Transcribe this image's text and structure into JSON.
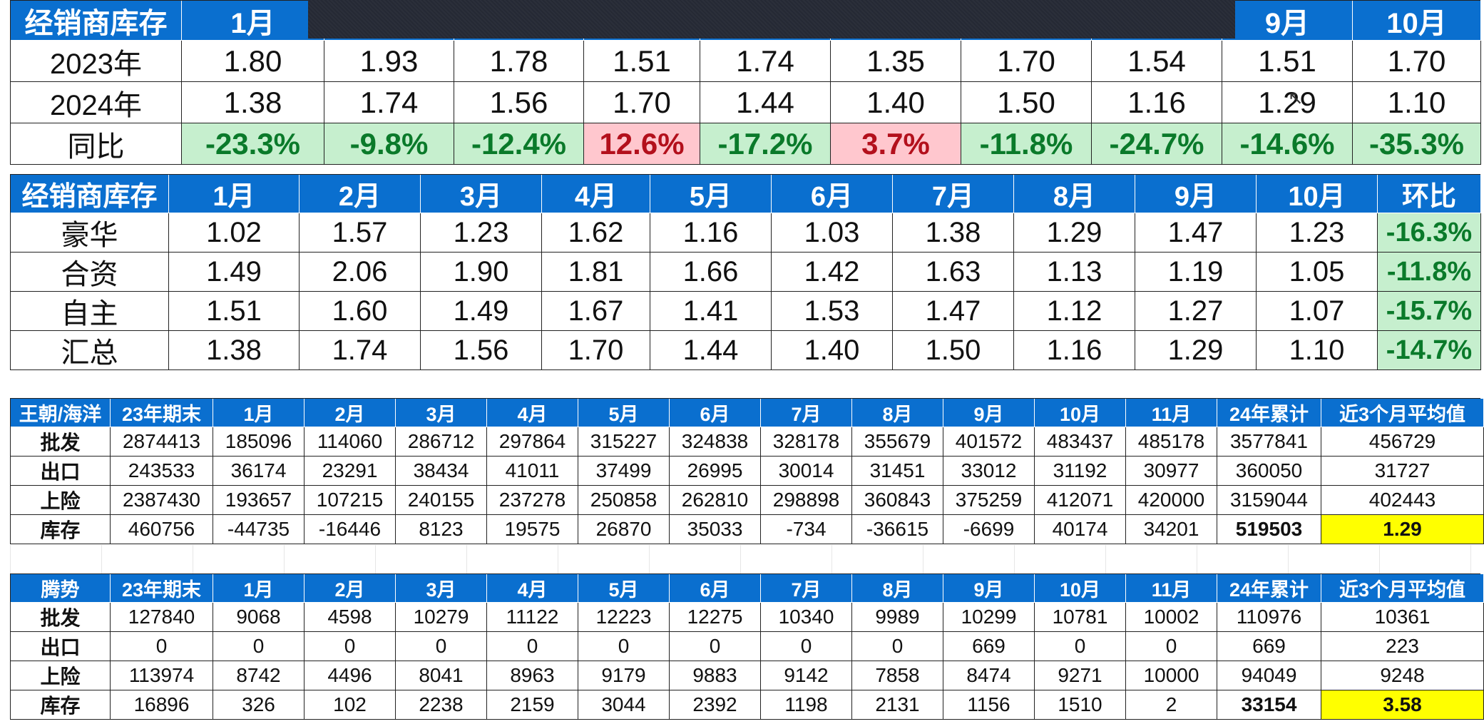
{
  "table1": {
    "header": [
      "经销商库存",
      "1月",
      "",
      "",
      "",
      "",
      "",
      "",
      "",
      "9月",
      "10月"
    ],
    "rows": [
      {
        "label": "2023年",
        "values": [
          "1.80",
          "1.93",
          "1.78",
          "1.51",
          "1.74",
          "1.35",
          "1.70",
          "1.54",
          "1.51",
          "1.70"
        ]
      },
      {
        "label": "2024年",
        "values": [
          "1.38",
          "1.74",
          "1.56",
          "1.70",
          "1.44",
          "1.40",
          "1.50",
          "1.16",
          "1.29",
          "1.10"
        ]
      },
      {
        "label": "同比",
        "values": [
          "-23.3%",
          "-9.8%",
          "-12.4%",
          "12.6%",
          "-17.2%",
          "3.7%",
          "-11.8%",
          "-24.7%",
          "-14.6%",
          "-35.3%"
        ]
      }
    ]
  },
  "table2": {
    "header": [
      "经销商库存",
      "1月",
      "2月",
      "3月",
      "4月",
      "5月",
      "6月",
      "7月",
      "8月",
      "9月",
      "10月",
      "环比"
    ],
    "rows": [
      {
        "label": "豪华",
        "values": [
          "1.02",
          "1.57",
          "1.23",
          "1.62",
          "1.16",
          "1.03",
          "1.38",
          "1.29",
          "1.47",
          "1.23"
        ],
        "change": "-16.3%"
      },
      {
        "label": "合资",
        "values": [
          "1.49",
          "2.06",
          "1.90",
          "1.81",
          "1.66",
          "1.42",
          "1.63",
          "1.13",
          "1.19",
          "1.05"
        ],
        "change": "-11.8%"
      },
      {
        "label": "自主",
        "values": [
          "1.51",
          "1.60",
          "1.49",
          "1.67",
          "1.41",
          "1.53",
          "1.47",
          "1.12",
          "1.27",
          "1.07"
        ],
        "change": "-15.7%"
      },
      {
        "label": "汇总",
        "values": [
          "1.38",
          "1.74",
          "1.56",
          "1.70",
          "1.44",
          "1.40",
          "1.50",
          "1.16",
          "1.29",
          "1.10"
        ],
        "change": "-14.7%"
      }
    ]
  },
  "table3": {
    "header": [
      "王朝/海洋",
      "23年期末",
      "1月",
      "2月",
      "3月",
      "4月",
      "5月",
      "6月",
      "7月",
      "8月",
      "9月",
      "10月",
      "11月",
      "24年累计",
      "近3个月平均值"
    ],
    "rows": [
      {
        "label": "批发",
        "values": [
          "2874413",
          "185096",
          "114060",
          "286712",
          "297864",
          "315227",
          "324838",
          "328178",
          "355679",
          "401572",
          "483437",
          "485178",
          "3577841",
          "456729"
        ]
      },
      {
        "label": "出口",
        "values": [
          "243533",
          "36174",
          "23291",
          "38434",
          "41011",
          "37499",
          "26995",
          "30014",
          "31451",
          "33012",
          "31192",
          "30977",
          "360050",
          "31727"
        ]
      },
      {
        "label": "上险",
        "values": [
          "2387430",
          "193657",
          "107215",
          "240155",
          "237278",
          "250858",
          "262810",
          "298898",
          "360843",
          "375259",
          "412071",
          "420000",
          "3159044",
          "402443"
        ]
      },
      {
        "label": "库存",
        "values": [
          "460756",
          "-44735",
          "-16446",
          "8123",
          "19575",
          "26870",
          "35033",
          "-734",
          "-36615",
          "-6699",
          "40174",
          "34201",
          "519503",
          "1.29"
        ]
      }
    ]
  },
  "table4": {
    "header": [
      "腾势",
      "23年期末",
      "1月",
      "2月",
      "3月",
      "4月",
      "5月",
      "6月",
      "7月",
      "8月",
      "9月",
      "10月",
      "11月",
      "24年累计",
      "近3个月平均值"
    ],
    "rows": [
      {
        "label": "批发",
        "values": [
          "127840",
          "9068",
          "4598",
          "10279",
          "11122",
          "12223",
          "12275",
          "10340",
          "9989",
          "10299",
          "10781",
          "10002",
          "110976",
          "10361"
        ]
      },
      {
        "label": "出口",
        "values": [
          "0",
          "0",
          "0",
          "0",
          "0",
          "0",
          "0",
          "0",
          "0",
          "669",
          "0",
          "0",
          "669",
          "223"
        ]
      },
      {
        "label": "上险",
        "values": [
          "113974",
          "8742",
          "4496",
          "8041",
          "8963",
          "9179",
          "9883",
          "9142",
          "7858",
          "8474",
          "9271",
          "10000",
          "94049",
          "9248"
        ]
      },
      {
        "label": "库存",
        "values": [
          "16896",
          "326",
          "102",
          "2238",
          "2159",
          "3044",
          "2392",
          "1198",
          "2131",
          "1156",
          "1510",
          "2",
          "33154",
          "3.58"
        ]
      }
    ]
  },
  "colors": {
    "header_blue": "#0a6fcf",
    "positive_bg": "#c6efce",
    "positive_text": "#0a7a2a",
    "negative_bg": "#ffc7ce",
    "negative_text": "#b3101c",
    "highlight_yellow": "#ffff00"
  }
}
